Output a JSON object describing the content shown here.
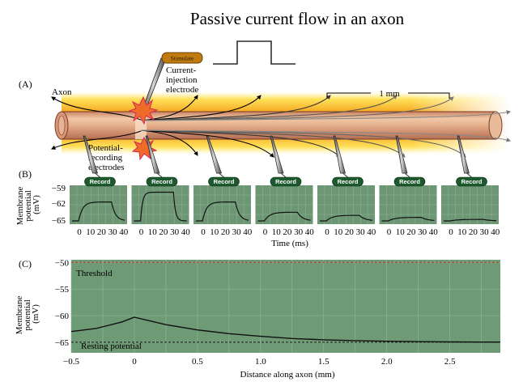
{
  "title": "Passive current flow in an axon",
  "panel_a": {
    "label": "(A)",
    "axon_label": "Axon",
    "stimulate_label": "Stimulate",
    "injection_label_lines": [
      "Current-",
      "injection",
      "electrode"
    ],
    "recording_label_lines": [
      "Potential-",
      "recording",
      "electrodes"
    ],
    "scale_label": "1 mm"
  },
  "panel_b": {
    "label": "(B)",
    "record_label": "Record",
    "ylabel_lines": [
      "Membrane",
      "potential",
      "(mV)"
    ],
    "xlabel": "Time (ms)",
    "y_ticks": [
      "−59",
      "−62",
      "−65"
    ],
    "x_ticks": [
      "0",
      "10",
      "20",
      "30",
      "40"
    ],
    "y_range": [
      -65,
      -59
    ],
    "x_range": [
      0,
      40
    ],
    "traces": [
      {
        "amplitude": 3.7,
        "tau": 3.0
      },
      {
        "amplitude": 5.6,
        "tau": 1.5
      },
      {
        "amplitude": 3.7,
        "tau": 3.0
      },
      {
        "amplitude": 1.7,
        "tau": 4.0
      },
      {
        "amplitude": 1.1,
        "tau": 4.5
      },
      {
        "amplitude": 0.7,
        "tau": 5.0
      },
      {
        "amplitude": 0.3,
        "tau": 5.5
      }
    ],
    "stimulus_on_ms": 5,
    "stimulus_off_ms": 30,
    "resting_mV": -65,
    "colors": {
      "panel_bg": "#6d9774",
      "record_bg": "#1c5a2e"
    }
  },
  "panel_c": {
    "label": "(C)",
    "ylabel_lines": [
      "Membrane",
      "potential",
      "(mV)"
    ],
    "xlabel": "Distance along axon (mm)",
    "threshold_label": "Threshold",
    "resting_label": "Resting potential",
    "y_ticks": [
      "−50",
      "−55",
      "−60",
      "−65"
    ],
    "x_ticks": [
      "−0.5",
      "0",
      "0.5",
      "1.0",
      "1.5",
      "2.0",
      "2.5"
    ],
    "colors": {
      "panel_bg": "#6e9a76",
      "threshold": "#c0392b"
    }
  },
  "chart_data": {
    "type": "line",
    "title": "",
    "xlabel": "Distance along axon (mm)",
    "ylabel": "Membrane potential (mV)",
    "xlim": [
      -0.5,
      2.9
    ],
    "ylim": [
      -67,
      -49.5
    ],
    "threshold_mV": -50,
    "resting_mV": -65,
    "series": [
      {
        "name": "",
        "x": [
          -0.5,
          -0.3,
          -0.1,
          0.0,
          0.25,
          0.5,
          0.75,
          1.0,
          1.25,
          1.5,
          1.75,
          2.0,
          2.25,
          2.5,
          2.75,
          2.9
        ],
        "y": [
          -63.0,
          -62.4,
          -61.2,
          -60.3,
          -61.7,
          -62.7,
          -63.4,
          -63.9,
          -64.3,
          -64.55,
          -64.7,
          -64.82,
          -64.9,
          -64.94,
          -64.97,
          -64.98
        ]
      }
    ]
  }
}
